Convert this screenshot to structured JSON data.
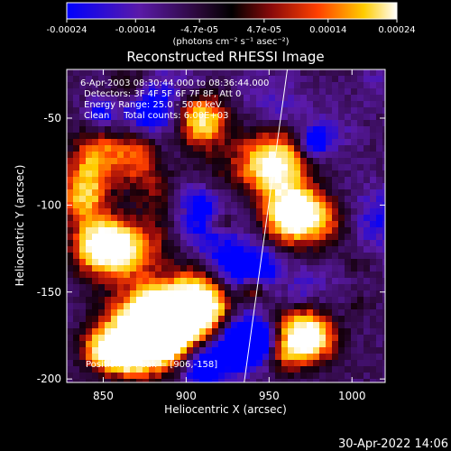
{
  "colorbar": {
    "ticks": [
      "-0.00024",
      "-0.00014",
      "-4.7e-05",
      "4.7e-05",
      "0.00014",
      "0.00024"
    ],
    "tick_values": [
      -0.00024,
      -0.00014,
      -4.7e-05,
      4.7e-05,
      0.00014,
      0.00024
    ],
    "range": [
      -0.00024,
      0.00024
    ],
    "units_label": "(photons cm⁻² s⁻¹ asec⁻²)"
  },
  "title": "Reconstructed RHESSI Image",
  "annotations": {
    "time": "6-Apr-2003 08:30:44.000 to 08:36:44.000",
    "detectors": "Detectors: 3F 4F 5F 6F 7F 8F, Att 0",
    "energy": "Energy Range: 25.0 - 50.0 keV",
    "method": "Clean     Total counts: 6.00E+03",
    "peak": "Position of Peak = [906,-158]"
  },
  "timestamp": "30-Apr-2022 14:06",
  "colors": {
    "background": "#000000",
    "low": "#0000ff",
    "zero": "#000000",
    "high": "#ffffff"
  },
  "chart_data": {
    "type": "heatmap",
    "title": "Reconstructed RHESSI Image",
    "xlabel": "Heliocentric X (arcsec)",
    "ylabel": "Heliocentric Y (arcsec)",
    "xlim": [
      828,
      1020
    ],
    "ylim": [
      -202,
      -22
    ],
    "xticks": [
      850,
      900,
      950,
      1000
    ],
    "yticks": [
      -200,
      -150,
      -100,
      -50
    ],
    "xtick_labels": [
      "850",
      "900",
      "950",
      "1000"
    ],
    "ytick_labels": [
      "-200",
      "-150",
      "-100",
      "-50"
    ],
    "colorscale_range": [
      -0.00024,
      0.00024
    ],
    "peak_position": [
      906,
      -158
    ],
    "limb_line": [
      [
        935,
        -202
      ],
      [
        961,
        -22
      ]
    ],
    "grid": false
  }
}
